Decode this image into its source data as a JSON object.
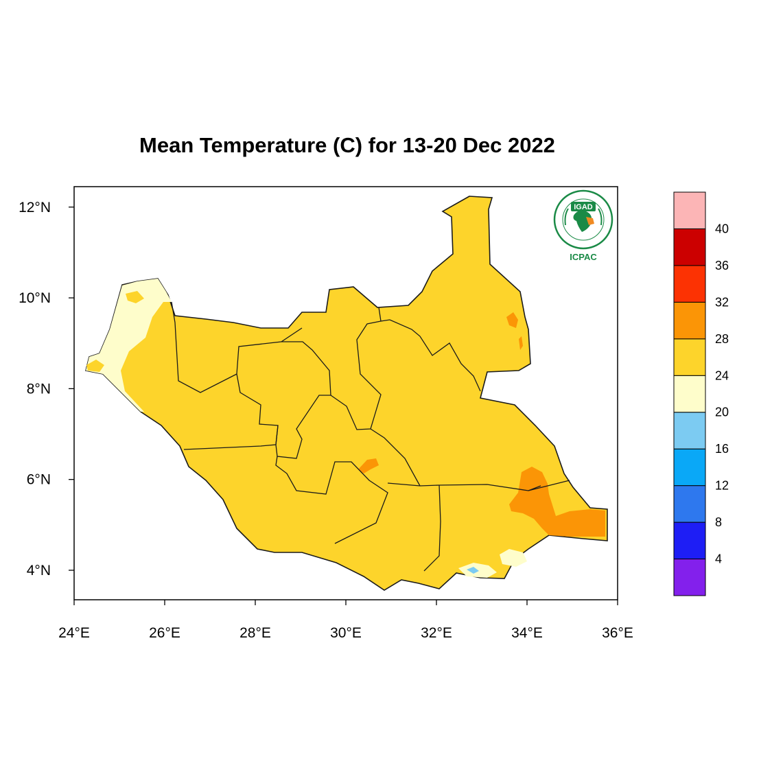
{
  "title": "Mean Temperature (C) for 13-20 Dec 2022",
  "map": {
    "lon_range": [
      24,
      36
    ],
    "lat_range": [
      3.35,
      12.45
    ],
    "x_ticks": [
      {
        "value": 24,
        "label": "24°E"
      },
      {
        "value": 26,
        "label": "26°E"
      },
      {
        "value": 28,
        "label": "28°E"
      },
      {
        "value": 30,
        "label": "30°E"
      },
      {
        "value": 32,
        "label": "32°E"
      },
      {
        "value": 34,
        "label": "34°E"
      },
      {
        "value": 36,
        "label": "36°E"
      }
    ],
    "y_ticks": [
      {
        "value": 12,
        "label": "12°N"
      },
      {
        "value": 10,
        "label": "10°N"
      },
      {
        "value": 8,
        "label": "8°N"
      },
      {
        "value": 6,
        "label": "6°N"
      },
      {
        "value": 4,
        "label": "4°N"
      }
    ],
    "base_fill_band": "24-28"
  },
  "colorbar": {
    "levels": [
      "4",
      "8",
      "12",
      "16",
      "20",
      "24",
      "28",
      "32",
      "36",
      "40"
    ],
    "bins": [
      {
        "range": "<4",
        "color": "#8320ec"
      },
      {
        "range": "4-8",
        "color": "#1e1ef5"
      },
      {
        "range": "8-12",
        "color": "#2e78ee"
      },
      {
        "range": "12-16",
        "color": "#0aa8f7"
      },
      {
        "range": "16-20",
        "color": "#7ccbf2"
      },
      {
        "range": "20-24",
        "color": "#fefdcb"
      },
      {
        "range": "24-28",
        "color": "#fdd42b"
      },
      {
        "range": "28-32",
        "color": "#fb9506"
      },
      {
        "range": "32-36",
        "color": "#fc3203"
      },
      {
        "range": "36-40",
        "color": "#cc0000"
      },
      {
        "range": ">40",
        "color": "#fcb5b6"
      }
    ]
  },
  "logo": {
    "top_text": "IGAD",
    "bottom_text": "ICPAC",
    "color": "#1a8a46",
    "accent": "#f08a22"
  }
}
